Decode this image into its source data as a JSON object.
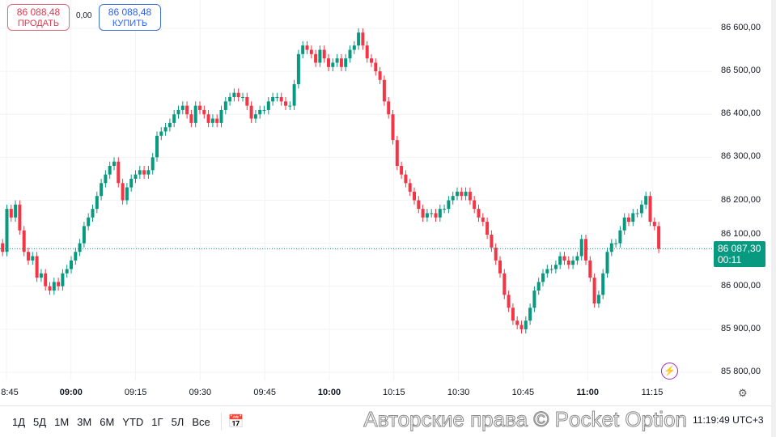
{
  "trade": {
    "sell_price": "86 088,48",
    "sell_label": "ПРОДАТЬ",
    "spread": "0,00",
    "buy_price": "86 088,48",
    "buy_label": "КУПИТЬ"
  },
  "colors": {
    "up": "#089981",
    "down": "#f23645",
    "current": "#089981",
    "accent": "#9c27b0"
  },
  "price_axis": [
    "86 600,00",
    "86 500,00",
    "86 400,00",
    "86 300,00",
    "86 200,00",
    "86 100,00",
    "86 000,00",
    "85 900,00",
    "85 800,00"
  ],
  "time_axis": [
    {
      "t": "8:45",
      "bold": false
    },
    {
      "t": "09:00",
      "bold": true
    },
    {
      "t": "09:15",
      "bold": false
    },
    {
      "t": "09:30",
      "bold": false
    },
    {
      "t": "09:45",
      "bold": false
    },
    {
      "t": "10:00",
      "bold": true
    },
    {
      "t": "10:15",
      "bold": false
    },
    {
      "t": "10:30",
      "bold": false
    },
    {
      "t": "10:45",
      "bold": false
    },
    {
      "t": "11:00",
      "bold": true
    },
    {
      "t": "11:15",
      "bold": false
    }
  ],
  "current": {
    "price": "86 087,30",
    "countdown": "00:11"
  },
  "chart_data": {
    "type": "candlestick",
    "interval": "1m",
    "start": "08:44",
    "ylim": [
      85800,
      86600
    ],
    "grid": true,
    "closes": [
      86080,
      86180,
      86160,
      86190,
      86130,
      86080,
      86060,
      86070,
      86020,
      86030,
      86000,
      85990,
      86010,
      86000,
      86030,
      86040,
      86060,
      86080,
      86100,
      86140,
      86160,
      86180,
      86210,
      86240,
      86260,
      86280,
      86290,
      86240,
      86200,
      86230,
      86250,
      86260,
      86270,
      86260,
      86270,
      86300,
      86350,
      86360,
      86370,
      86380,
      86400,
      86410,
      86420,
      86400,
      86380,
      86420,
      86410,
      86400,
      86380,
      86390,
      86380,
      86410,
      86430,
      86440,
      86450,
      86440,
      86440,
      86420,
      86390,
      86400,
      86410,
      86410,
      86430,
      86440,
      86440,
      86430,
      86420,
      86420,
      86470,
      86540,
      86560,
      86550,
      86540,
      86520,
      86550,
      86530,
      86510,
      86520,
      86530,
      86510,
      86530,
      86550,
      86560,
      86590,
      86560,
      86530,
      86520,
      86500,
      86480,
      86430,
      86400,
      86340,
      86280,
      86260,
      86240,
      86220,
      86200,
      86180,
      86160,
      86170,
      86170,
      86160,
      86180,
      86180,
      86200,
      86210,
      86220,
      86210,
      86220,
      86200,
      86180,
      86160,
      86150,
      86120,
      86090,
      86060,
      86030,
      85980,
      85950,
      85920,
      85910,
      85900,
      85920,
      85950,
      85990,
      86010,
      86030,
      86040,
      86040,
      86050,
      86070,
      86060,
      86050,
      86060,
      86070,
      86110,
      86060,
      86020,
      85960,
      85980,
      86030,
      86080,
      86100,
      86100,
      86130,
      86160,
      86150,
      86170,
      86170,
      86190,
      86210,
      86150,
      86140,
      86087
    ],
    "current_price": 86087.3
  },
  "toolbar": {
    "ranges": [
      "1Д",
      "5Д",
      "1М",
      "3М",
      "6М",
      "YTD",
      "1Г",
      "5Л",
      "Все"
    ],
    "clock": "11:19:49 UTC+3"
  },
  "watermark": "Авторские права © Pocket Option"
}
